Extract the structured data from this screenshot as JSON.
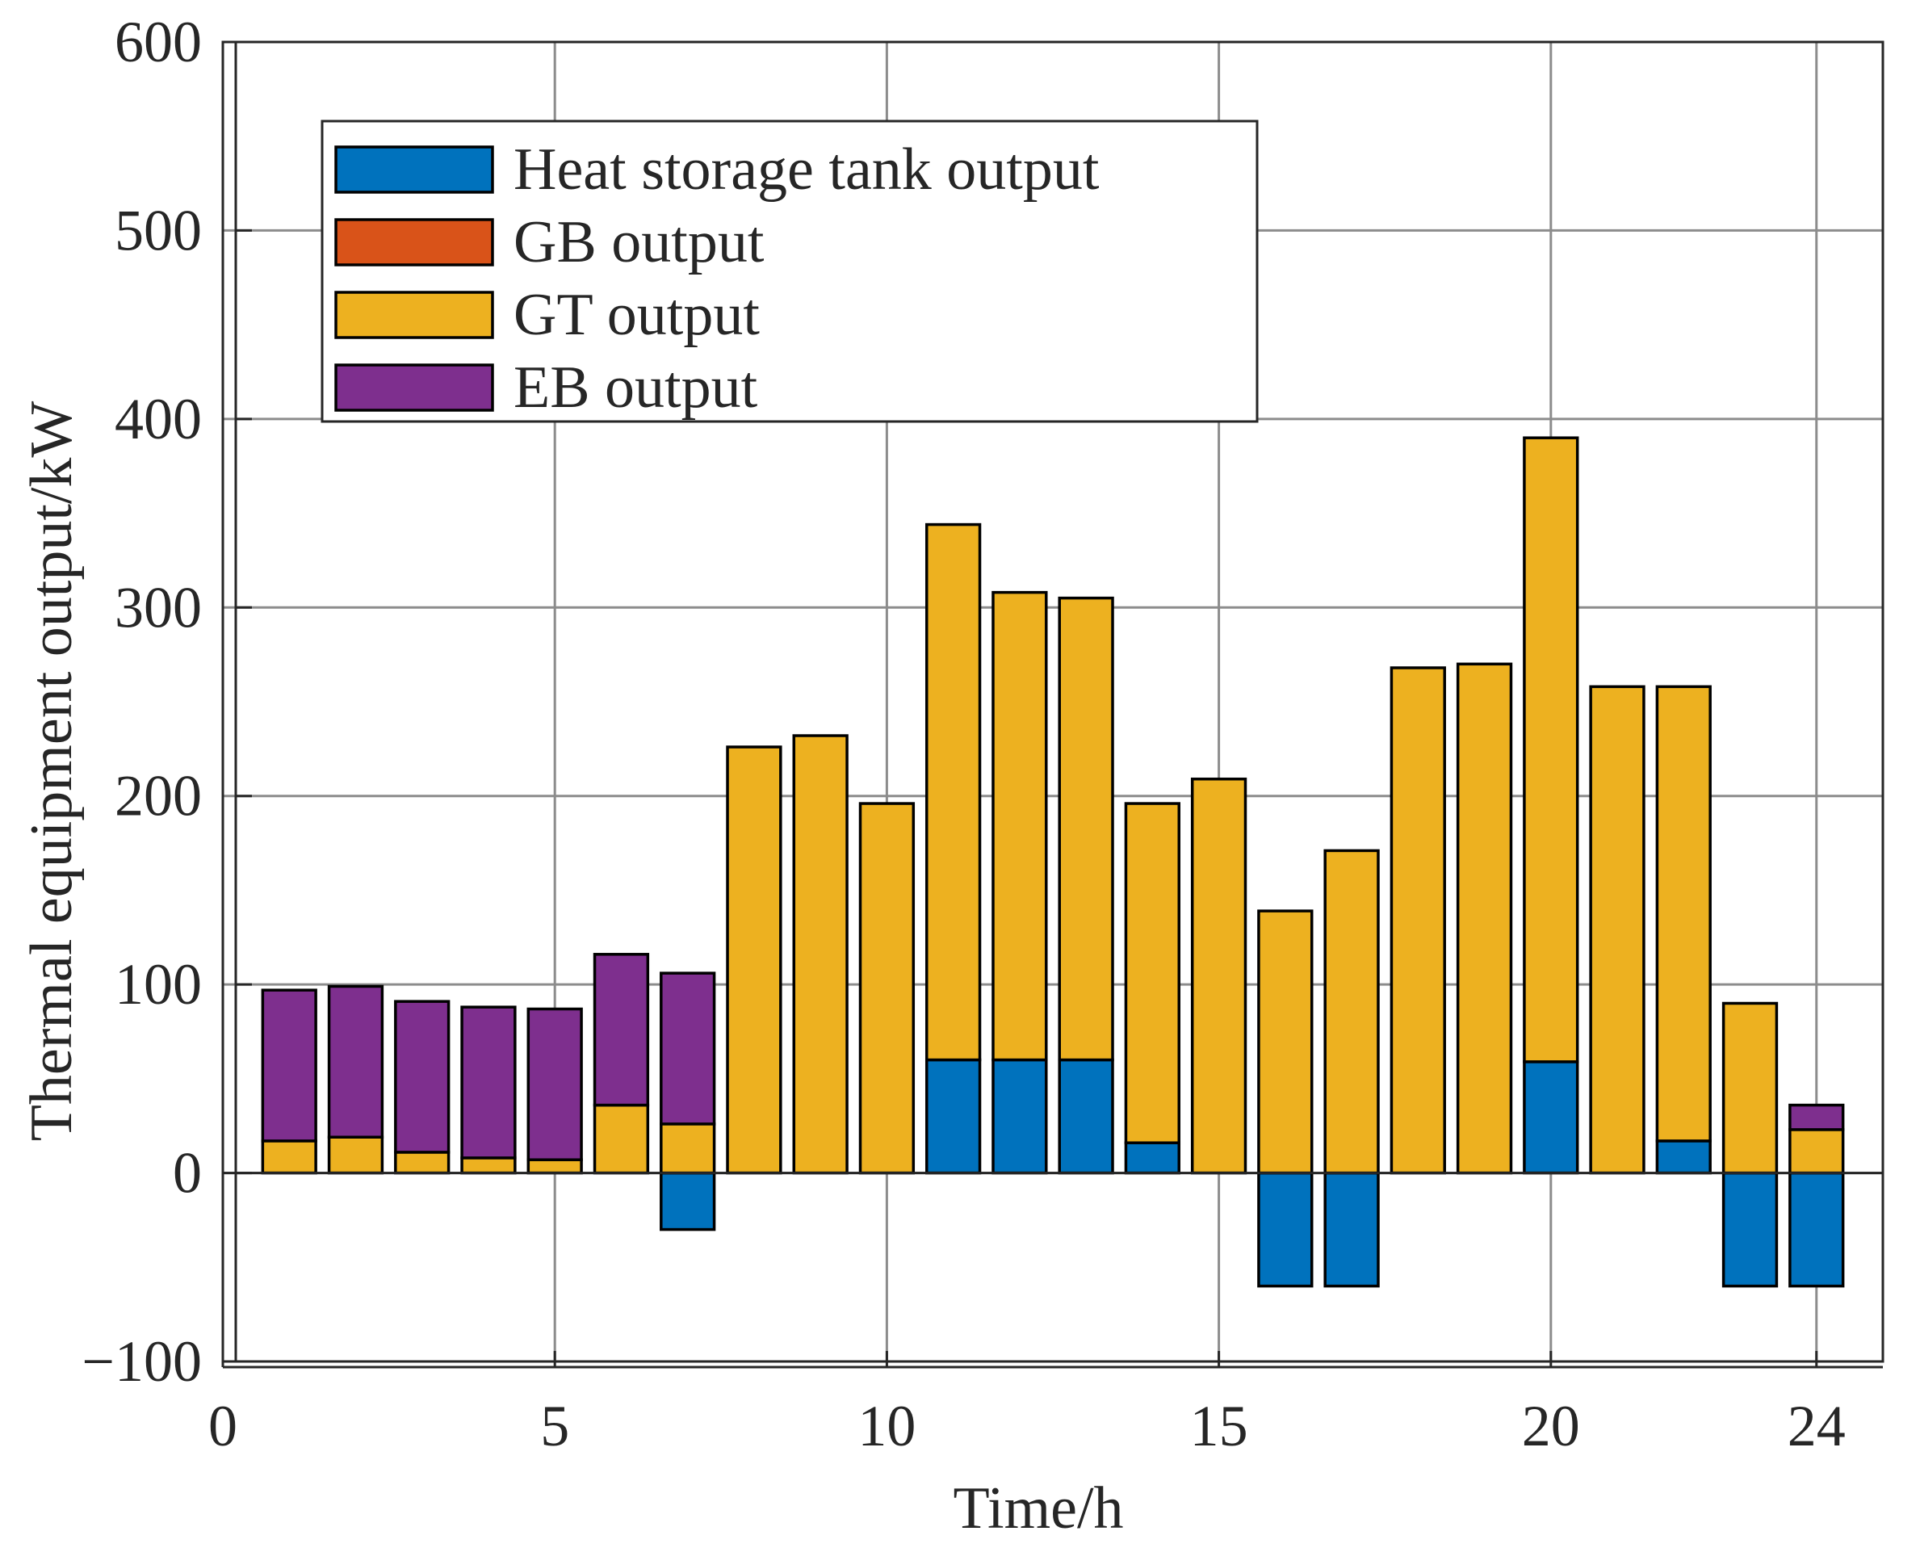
{
  "chart_data": {
    "type": "bar",
    "stacked": true,
    "xlabel": "Time/h",
    "ylabel": "Thermal equipment output/kW",
    "xlim": [
      0,
      25
    ],
    "ylim": [
      -100,
      600
    ],
    "x_ticks": [
      0,
      5,
      10,
      15,
      20,
      24
    ],
    "y_ticks": [
      -100,
      0,
      100,
      200,
      300,
      400,
      500,
      600
    ],
    "grid": true,
    "legend_position": "top-left",
    "x": [
      1,
      2,
      3,
      4,
      5,
      6,
      7,
      8,
      9,
      10,
      11,
      12,
      13,
      14,
      15,
      16,
      17,
      18,
      19,
      20,
      21,
      22,
      23,
      24
    ],
    "series": [
      {
        "name": "Heat storage tank output",
        "color": "#0072BD",
        "values": [
          0,
          0,
          0,
          0,
          0,
          0,
          -30,
          0,
          0,
          0,
          60,
          60,
          60,
          16,
          0,
          -60,
          -60,
          0,
          0,
          59,
          0,
          17,
          -60,
          -60
        ]
      },
      {
        "name": "GB output",
        "color": "#D95319",
        "values": [
          0,
          0,
          0,
          0,
          0,
          0,
          0,
          0,
          0,
          0,
          0,
          0,
          0,
          0,
          0,
          0,
          0,
          0,
          0,
          0,
          0,
          0,
          0,
          0
        ]
      },
      {
        "name": "GT output",
        "color": "#EDB120",
        "values": [
          17,
          19,
          11,
          8,
          7,
          36,
          26,
          226,
          232,
          196,
          284,
          248,
          245,
          180,
          209,
          139,
          171,
          268,
          270,
          331,
          258,
          241,
          90,
          23
        ]
      },
      {
        "name": "EB output",
        "color": "#7E2F8E",
        "values": [
          80,
          80,
          80,
          80,
          80,
          80,
          80,
          0,
          0,
          0,
          0,
          0,
          0,
          0,
          0,
          0,
          0,
          0,
          0,
          0,
          0,
          0,
          0,
          13
        ]
      }
    ]
  }
}
